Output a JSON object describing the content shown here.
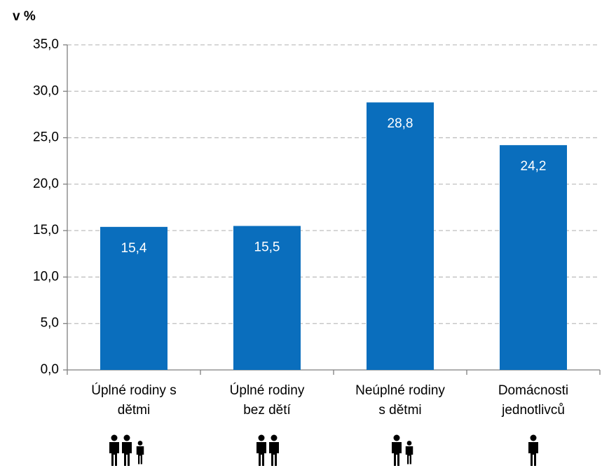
{
  "chart_data": {
    "type": "bar",
    "y_label": "v %",
    "categories": [
      [
        "Úplné rodiny s",
        "dětmi"
      ],
      [
        "Úplné rodiny",
        "bez dětí"
      ],
      [
        "Neúplné rodiny",
        "s dětmi"
      ],
      [
        "Domácnosti",
        "jednotlivců"
      ]
    ],
    "values": [
      15.4,
      15.5,
      28.8,
      24.2
    ],
    "value_labels": [
      "15,4",
      "15,5",
      "28,8",
      "24,2"
    ],
    "color": "#0a6ebd",
    "ylim": [
      0,
      35
    ],
    "yticks": [
      {
        "value": 0,
        "label": "0,0"
      },
      {
        "value": 5,
        "label": "5,0"
      },
      {
        "value": 10,
        "label": "10,0"
      },
      {
        "value": 15,
        "label": "15,0"
      },
      {
        "value": 20,
        "label": "20,0"
      },
      {
        "value": 25,
        "label": "25,0"
      },
      {
        "value": 30,
        "label": "30,0"
      },
      {
        "value": 35,
        "label": "35,0"
      }
    ],
    "grid": true
  }
}
